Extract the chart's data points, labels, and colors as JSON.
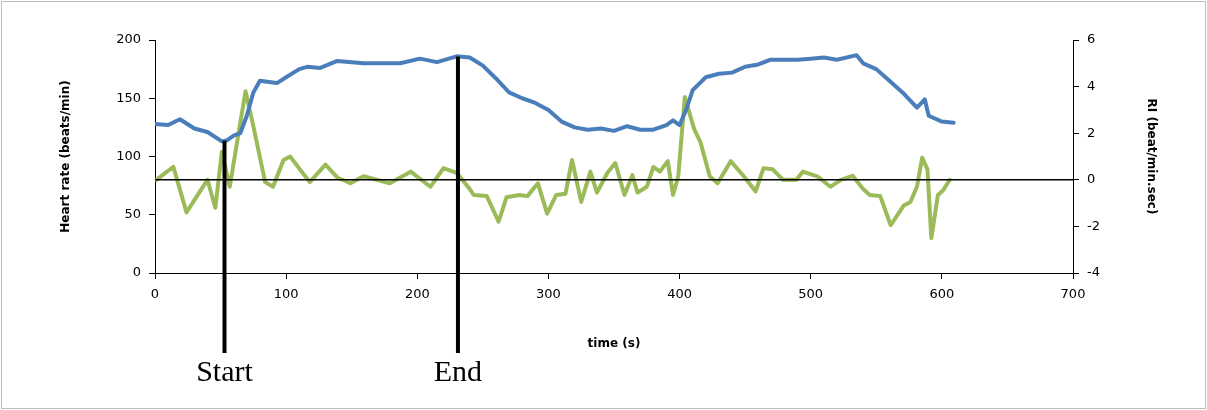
{
  "chart_data": {
    "type": "line",
    "xlabel": "time (s)",
    "ylabel": "Heart rate (beats/min)",
    "y2label": "RI (beat/min.sec)",
    "xlim": [
      0,
      700
    ],
    "xticks": [
      0,
      100,
      200,
      300,
      400,
      500,
      600,
      700
    ],
    "ylim": [
      0,
      200
    ],
    "yticks": [
      0,
      50,
      100,
      150,
      200
    ],
    "y2lim": [
      -4,
      6
    ],
    "y2ticks": [
      -4,
      -2,
      0,
      2,
      4,
      6
    ],
    "grid": false,
    "legend": false,
    "marker": "none",
    "line_style": "solid",
    "series": [
      {
        "color": "#4a7ebb",
        "x": [
          0,
          10,
          19,
          30,
          40,
          51,
          55,
          60,
          65,
          70,
          75,
          80,
          93,
          100,
          110,
          116,
          126,
          139,
          150,
          159,
          170,
          187,
          202,
          215,
          230,
          240,
          250,
          260,
          270,
          280,
          290,
          300,
          310,
          320,
          330,
          340,
          350,
          360,
          370,
          380,
          390,
          395,
          400,
          405,
          410,
          420,
          430,
          440,
          450,
          460,
          469,
          480,
          490,
          500,
          510,
          520,
          535,
          540,
          550,
          560,
          570,
          581,
          587,
          590,
          600,
          609
        ],
        "values": [
          128,
          127,
          132,
          124,
          121,
          113,
          114,
          118,
          120,
          135,
          155,
          165,
          163,
          168,
          175,
          177,
          176,
          182,
          181,
          180,
          180,
          180,
          184,
          181,
          186,
          185,
          178,
          167,
          155,
          150,
          146,
          140,
          130,
          125,
          123,
          124,
          122,
          126,
          123,
          123,
          127,
          131,
          127,
          140,
          157,
          168,
          171,
          172,
          177,
          179,
          183,
          183,
          183,
          184,
          185,
          183,
          187,
          180,
          175,
          165,
          155,
          142,
          149,
          135,
          130,
          129
        ]
      },
      {
        "color": "#9bbb59",
        "axis": "y2",
        "x": [
          1,
          14,
          24,
          40,
          46,
          51,
          57,
          69,
          75,
          84,
          90,
          98,
          103,
          118,
          130,
          139,
          149,
          159,
          179,
          195,
          210,
          220,
          230,
          240,
          243,
          253,
          262,
          268,
          278,
          284,
          292,
          299,
          306,
          313,
          318,
          325,
          332,
          337,
          345,
          351,
          358,
          364,
          368,
          375,
          380,
          385,
          391,
          395,
          399,
          404,
          411,
          416,
          423,
          429,
          439,
          449,
          458,
          464,
          471,
          479,
          489,
          494,
          505,
          515,
          523,
          532,
          540,
          545,
          553,
          561,
          571,
          576,
          581,
          585,
          589,
          592,
          597,
          601,
          606
        ],
        "values": [
          0,
          0.56,
          -1.4,
          0,
          -1.2,
          1.2,
          -0.3,
          3.8,
          2.3,
          -0.1,
          -0.3,
          0.85,
          1,
          -0.1,
          0.65,
          0.1,
          -0.15,
          0.15,
          -0.15,
          0.35,
          -0.3,
          0.5,
          0.3,
          -0.4,
          -0.65,
          -0.7,
          -1.8,
          -0.75,
          -0.65,
          -0.7,
          -0.15,
          -1.45,
          -0.65,
          -0.6,
          0.85,
          -0.95,
          0.35,
          -0.55,
          0.3,
          0.72,
          -0.65,
          0.2,
          -0.55,
          -0.3,
          0.55,
          0.35,
          0.8,
          -0.65,
          0.15,
          3.55,
          2.2,
          1.6,
          0.15,
          -0.15,
          0.8,
          0.15,
          -0.5,
          0.5,
          0.45,
          0,
          0,
          0.35,
          0.15,
          -0.3,
          0,
          0.17,
          -0.4,
          -0.65,
          -0.7,
          -1.95,
          -1.1,
          -0.95,
          -0.3,
          0.95,
          0.45,
          -2.5,
          -0.65,
          -0.45,
          0
        ]
      }
    ],
    "ref_lines": [
      {
        "axis": "y2",
        "value": 0,
        "color": "#000000"
      },
      {
        "axis": "x",
        "value": 53,
        "label": "Start",
        "color": "#000000"
      },
      {
        "axis": "x",
        "value": 231,
        "label": "End",
        "color": "#000000"
      }
    ]
  }
}
